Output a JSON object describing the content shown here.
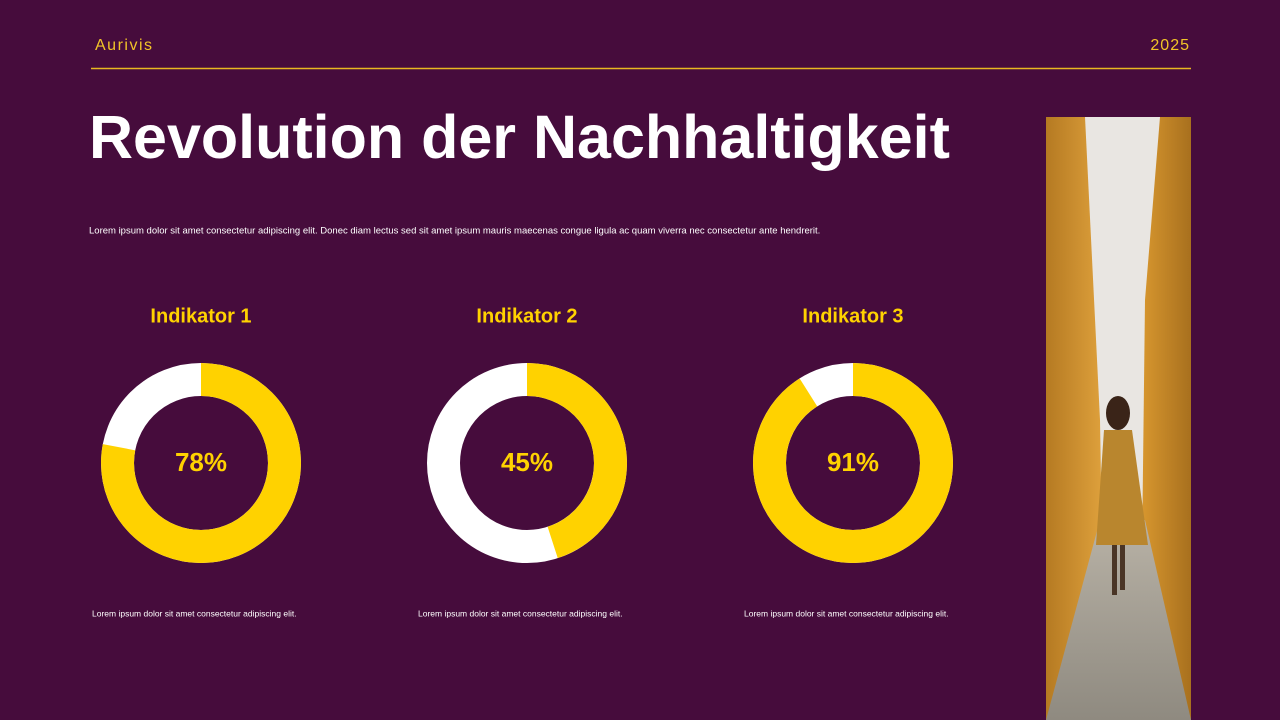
{
  "header": {
    "brand": "Aurivis",
    "year": "2025"
  },
  "title": "Revolution der Nachhaltigkeit",
  "description": "Lorem ipsum dolor sit amet consectetur adipiscing elit. Donec diam lectus sed sit amet ipsum mauris maecenas congue ligula ac quam viverra nec consectetur ante hendrerit.",
  "chart_data": [
    {
      "type": "donut",
      "title": "Indikator 1",
      "values": [
        78
      ],
      "value_labels": [
        "78%"
      ],
      "color": "#ffd200",
      "track_color": "#ffffff",
      "caption": "Lorem ipsum dolor sit amet consectetur adipiscing elit."
    },
    {
      "type": "donut",
      "title": "Indikator 2",
      "values": [
        45
      ],
      "value_labels": [
        "45%"
      ],
      "color": "#ffd200",
      "track_color": "#ffffff",
      "caption": "Lorem ipsum dolor sit amet consectetur adipiscing elit."
    },
    {
      "type": "donut",
      "title": "Indikator 3",
      "values": [
        91
      ],
      "value_labels": [
        "91%"
      ],
      "color": "#ffd200",
      "track_color": "#ffffff",
      "caption": "Lorem ipsum dolor sit amet consectetur adipiscing elit."
    }
  ]
}
